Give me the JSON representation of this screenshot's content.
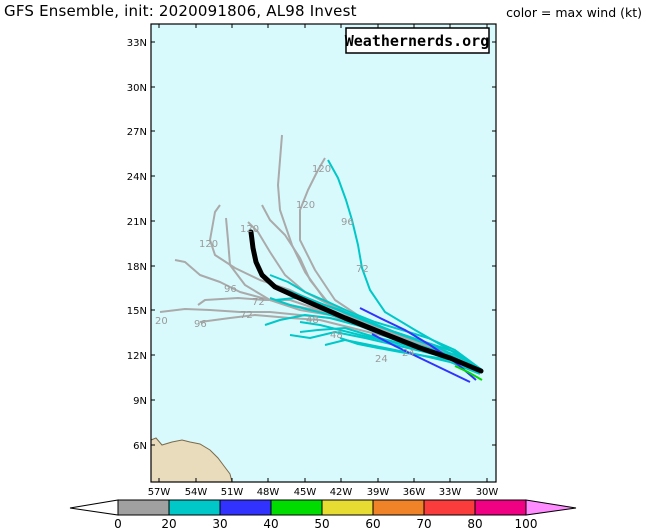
{
  "header": {
    "title": "GFS Ensemble, init: 2020091806, AL98 Invest",
    "color_note": "color = max wind (kt)"
  },
  "branding": {
    "text": "Weathernerds.org"
  },
  "map": {
    "ocean_color": "#d9fafd",
    "land_color": "#e8dcbc",
    "lat_labels": [
      "33N",
      "30N",
      "27N",
      "24N",
      "21N",
      "18N",
      "15N",
      "12N",
      "9N",
      "6N"
    ],
    "lon_labels": [
      "57W",
      "54W",
      "51W",
      "48W",
      "45W",
      "42W",
      "39W",
      "36W",
      "33W",
      "30W"
    ],
    "track_colors": {
      "tropical_depression": "#aaaaaa",
      "storm_20_30": "#00c8c8",
      "storm_30_40": "#3232ff",
      "storm_40_50": "#00dc00"
    },
    "mean_track_color": "#000000",
    "forecast_hour_labels": [
      "120",
      "120",
      "120",
      "120",
      "96",
      "96",
      "96",
      "72",
      "72",
      "72",
      "48",
      "48",
      "24",
      "24",
      "20"
    ]
  },
  "colorbar": {
    "ticks": [
      "0",
      "20",
      "30",
      "40",
      "50",
      "60",
      "70",
      "80",
      "100"
    ],
    "colors": [
      "#ffffff",
      "#a0a0a0",
      "#00c8c8",
      "#3232ff",
      "#00dc00",
      "#e6dc32",
      "#f08228",
      "#fa3c3c",
      "#f00082",
      "#ff8cff"
    ]
  }
}
